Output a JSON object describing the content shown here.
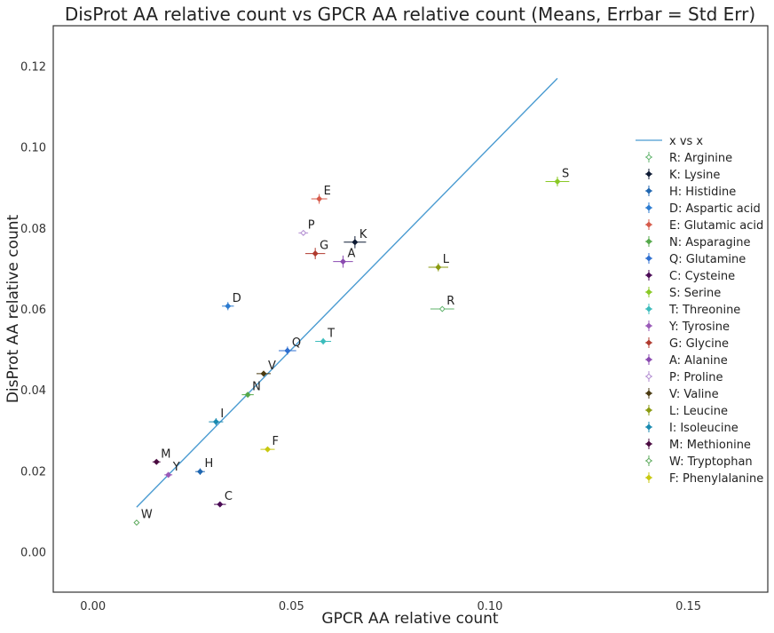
{
  "chart_data": {
    "type": "scatter",
    "title": "DisProt AA relative count vs GPCR AA relative count (Means, Errbar = Std Err)",
    "xlabel": "GPCR AA relative count",
    "ylabel": "DisProt AA relative count",
    "xlim": [
      -0.01,
      0.17
    ],
    "ylim": [
      -0.01,
      0.13
    ],
    "xticks": [
      0.0,
      0.05,
      0.1,
      0.15
    ],
    "xtick_labels": [
      "0.00",
      "0.05",
      "0.10",
      "0.15"
    ],
    "yticks": [
      0.0,
      0.02,
      0.04,
      0.06,
      0.08,
      0.1,
      0.12
    ],
    "ytick_labels": [
      "0.00",
      "0.02",
      "0.04",
      "0.06",
      "0.08",
      "0.10",
      "0.12"
    ],
    "grid": false,
    "legend_position": "right",
    "reference_line": {
      "name": "x vs x",
      "color": "#4a9bd1",
      "x": [
        0.011,
        0.117
      ],
      "y": [
        0.011,
        0.117
      ]
    },
    "series": [
      {
        "name": "R: Arginine",
        "label": "R",
        "x": 0.088,
        "y": 0.06,
        "color": "#5fb36b",
        "xerr": 0.003,
        "yerr": 0.0004,
        "filled": false
      },
      {
        "name": "K: Lysine",
        "label": "K",
        "x": 0.066,
        "y": 0.0765,
        "color": "#0d1a33",
        "xerr": 0.0028,
        "yerr": 0.0015,
        "filled": true
      },
      {
        "name": "H: Histidine",
        "label": "H",
        "x": 0.027,
        "y": 0.0198,
        "color": "#1f66b0",
        "xerr": 0.0012,
        "yerr": 0.0008,
        "filled": true
      },
      {
        "name": "D: Aspartic acid",
        "label": "D",
        "x": 0.034,
        "y": 0.0607,
        "color": "#2c7bd0",
        "xerr": 0.0015,
        "yerr": 0.001,
        "filled": true
      },
      {
        "name": "E: Glutamic acid",
        "label": "E",
        "x": 0.057,
        "y": 0.0872,
        "color": "#d65a4a",
        "xerr": 0.002,
        "yerr": 0.0012,
        "filled": true
      },
      {
        "name": "N: Asparagine",
        "label": "N",
        "x": 0.039,
        "y": 0.0388,
        "color": "#55a84a",
        "xerr": 0.0015,
        "yerr": 0.0005,
        "filled": true
      },
      {
        "name": "Q: Glutamine",
        "label": "Q",
        "x": 0.049,
        "y": 0.0497,
        "color": "#2f6fd0",
        "xerr": 0.0022,
        "yerr": 0.001,
        "filled": true
      },
      {
        "name": "C: Cysteine",
        "label": "C",
        "x": 0.032,
        "y": 0.0117,
        "color": "#4a0a55",
        "xerr": 0.0015,
        "yerr": 0.0006,
        "filled": true
      },
      {
        "name": "S: Serine",
        "label": "S",
        "x": 0.117,
        "y": 0.0915,
        "color": "#8ac926",
        "xerr": 0.003,
        "yerr": 0.0012,
        "filled": true
      },
      {
        "name": "T: Threonine",
        "label": "T",
        "x": 0.058,
        "y": 0.052,
        "color": "#3cbcbc",
        "xerr": 0.002,
        "yerr": 0.0008,
        "filled": true
      },
      {
        "name": "Y: Tyrosine",
        "label": "Y",
        "x": 0.019,
        "y": 0.019,
        "color": "#9a5ab8",
        "xerr": 0.001,
        "yerr": 0.0006,
        "filled": true
      },
      {
        "name": "G: Glycine",
        "label": "G",
        "x": 0.056,
        "y": 0.0737,
        "color": "#b03a2e",
        "xerr": 0.0025,
        "yerr": 0.0014,
        "filled": true
      },
      {
        "name": "A: Alanine",
        "label": "A",
        "x": 0.063,
        "y": 0.0717,
        "color": "#8a4ab0",
        "xerr": 0.0025,
        "yerr": 0.0015,
        "filled": true
      },
      {
        "name": "P: Proline",
        "label": "P",
        "x": 0.053,
        "y": 0.0788,
        "color": "#b08ad0",
        "xerr": 0.0012,
        "yerr": 0.0004,
        "filled": false
      },
      {
        "name": "V: Valine",
        "label": "V",
        "x": 0.043,
        "y": 0.044,
        "color": "#4a3a10",
        "xerr": 0.0018,
        "yerr": 0.0007,
        "filled": true
      },
      {
        "name": "L: Leucine",
        "label": "L",
        "x": 0.087,
        "y": 0.0703,
        "color": "#8a9a10",
        "xerr": 0.0025,
        "yerr": 0.001,
        "filled": true
      },
      {
        "name": "I: Isoleucine",
        "label": "I",
        "x": 0.031,
        "y": 0.0321,
        "color": "#1a8ab0",
        "xerr": 0.0018,
        "yerr": 0.0009,
        "filled": true
      },
      {
        "name": "M: Methionine",
        "label": "M",
        "x": 0.016,
        "y": 0.0222,
        "color": "#4a0a40",
        "xerr": 0.001,
        "yerr": 0.0006,
        "filled": true
      },
      {
        "name": "W: Tryptophan",
        "label": "W",
        "x": 0.011,
        "y": 0.0072,
        "color": "#5aa85a",
        "xerr": 0.0006,
        "yerr": 0.0004,
        "filled": false
      },
      {
        "name": "F: Phenylalanine",
        "label": "F",
        "x": 0.044,
        "y": 0.0253,
        "color": "#c8c810",
        "xerr": 0.0018,
        "yerr": 0.0004,
        "filled": true
      }
    ]
  }
}
